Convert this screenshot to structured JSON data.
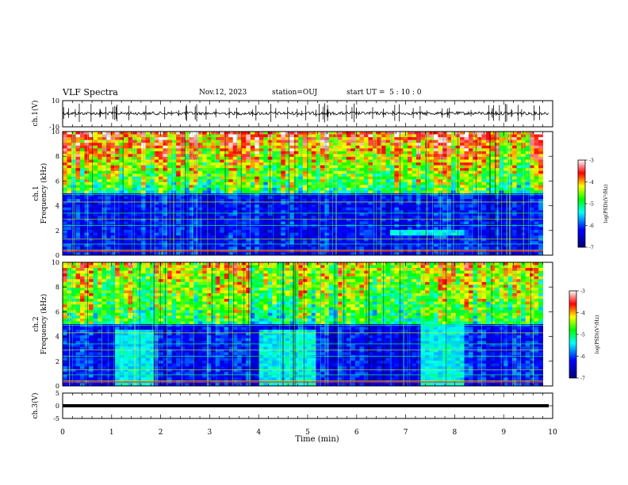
{
  "header": {
    "title": "VLF Spectra",
    "date": "Nov.12, 2023",
    "station": "station=OUJ",
    "start_time": "start UT =  5 : 10 : 0"
  },
  "chart_data": [
    {
      "type": "line",
      "panel": "ch1-waveform",
      "ylabel": "ch.1(V)",
      "ylim": [
        -10,
        10
      ],
      "yticks": [
        "10",
        "-10"
      ],
      "xlim": [
        0,
        10
      ],
      "baseline": 0,
      "color": "#000000"
    },
    {
      "type": "heatmap",
      "panel": "ch1-spectrogram",
      "ylabel": "ch.1\nFrequency (kHz)",
      "ylim": [
        0,
        10
      ],
      "yticks": [
        "0",
        "2",
        "4",
        "6",
        "8",
        "10"
      ],
      "xlim": [
        0,
        9.8
      ],
      "colorbar": {
        "label": "log(PSD)(V²/Hz)",
        "range": [
          -7,
          -3
        ],
        "ticks": [
          "-3",
          "-4",
          "-5",
          "-6",
          "-7"
        ]
      },
      "features": [
        {
          "name": "hiss band",
          "f_range_khz": [
            1.6,
            2.0
          ],
          "t_range_min": [
            6.7,
            8.2
          ]
        }
      ]
    },
    {
      "type": "heatmap",
      "panel": "ch2-spectrogram",
      "ylabel": "ch.2\nFrequency (kHz)",
      "ylim": [
        0,
        10
      ],
      "yticks": [
        "0",
        "2",
        "4",
        "6",
        "8",
        "10"
      ],
      "xlim": [
        0,
        9.8
      ],
      "colorbar": {
        "label": "log(PSD)(V²/Hz)",
        "range": [
          -7,
          -3
        ],
        "ticks": [
          "-3",
          "-4",
          "-5",
          "-6",
          "-7"
        ]
      },
      "features": [
        {
          "name": "emission patch",
          "f_range_khz": [
            0,
            4.5
          ],
          "t_range_min": [
            1.1,
            1.9
          ]
        },
        {
          "name": "emission patch",
          "f_range_khz": [
            0,
            4.5
          ],
          "t_range_min": [
            4.0,
            5.2
          ]
        },
        {
          "name": "emission patch",
          "f_range_khz": [
            0,
            5.0
          ],
          "t_range_min": [
            7.3,
            8.2
          ]
        }
      ]
    },
    {
      "type": "line",
      "panel": "ch3-waveform",
      "ylabel": "ch.3(V)",
      "ylim": [
        -5,
        5
      ],
      "yticks": [
        "5",
        "0",
        "-5"
      ],
      "xlim": [
        0,
        10
      ],
      "baseline": 0,
      "color": "#000000"
    }
  ],
  "xaxis": {
    "label": "Time (min)",
    "ticks": [
      "0",
      "1",
      "2",
      "3",
      "4",
      "5",
      "6",
      "7",
      "8",
      "9",
      "10"
    ]
  }
}
